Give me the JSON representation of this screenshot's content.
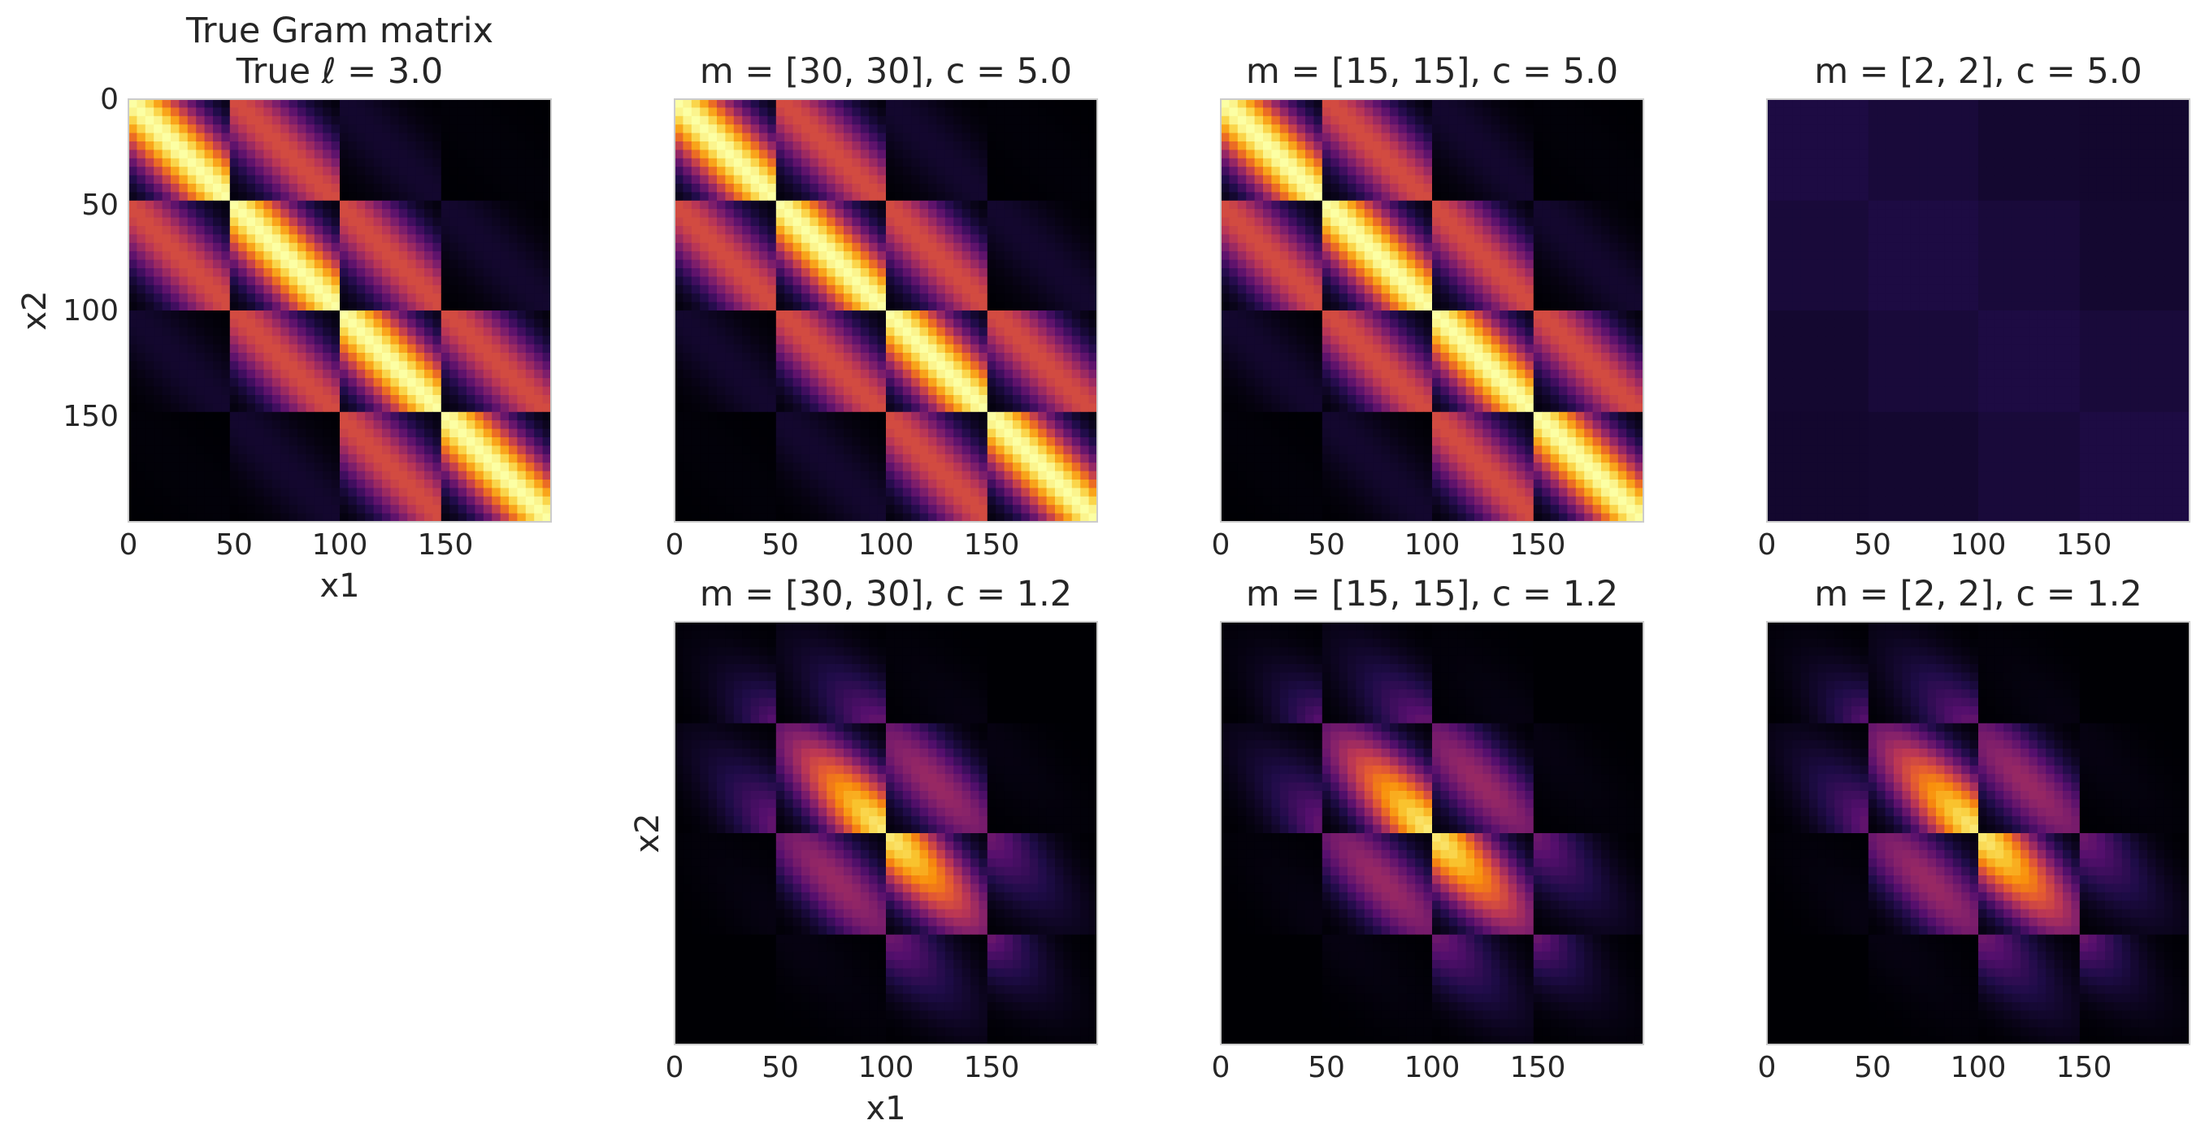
{
  "chart_data": [
    {
      "type": "heatmap",
      "panel": "true",
      "title_lines": [
        "True Gram matrix",
        "True ℓ = 3.0"
      ],
      "xlabel": "x1",
      "ylabel": "x2",
      "xticks": [
        "0",
        "50",
        "100",
        "150"
      ],
      "yticks": [
        "0",
        "50",
        "100",
        "150"
      ],
      "xlim": [
        0,
        200
      ],
      "ylim": [
        0,
        200
      ],
      "colormap": "inferno",
      "lengthscale": 3.0,
      "scale": 1.0
    },
    {
      "type": "heatmap",
      "panel": "m30c5",
      "title_lines": [
        "m = [30, 30], c = 5.0"
      ],
      "xlabel": "",
      "ylabel": "",
      "xticks": [
        "0",
        "50",
        "100",
        "150"
      ],
      "yticks": [],
      "xlim": [
        0,
        200
      ],
      "ylim": [
        0,
        200
      ],
      "colormap": "inferno",
      "m": [
        30,
        30
      ],
      "c": 5.0,
      "scale": 1.0
    },
    {
      "type": "heatmap",
      "panel": "m15c5",
      "title_lines": [
        "m = [15, 15], c = 5.0"
      ],
      "xlabel": "",
      "ylabel": "",
      "xticks": [
        "0",
        "50",
        "100",
        "150"
      ],
      "yticks": [],
      "xlim": [
        0,
        200
      ],
      "ylim": [
        0,
        200
      ],
      "colormap": "inferno",
      "m": [
        15,
        15
      ],
      "c": 5.0,
      "scale": 1.0
    },
    {
      "type": "heatmap",
      "panel": "m2c5",
      "title_lines": [
        "m = [2, 2], c = 5.0"
      ],
      "xlabel": "",
      "ylabel": "",
      "xticks": [
        "0",
        "50",
        "100",
        "150"
      ],
      "yticks": [],
      "xlim": [
        0,
        200
      ],
      "ylim": [
        0,
        200
      ],
      "colormap": "inferno",
      "m": [
        2,
        2
      ],
      "c": 5.0,
      "scale": 0.08
    },
    {
      "type": "heatmap",
      "panel": "m30c12",
      "title_lines": [
        "m = [30, 30], c = 1.2"
      ],
      "xlabel": "x1",
      "ylabel": "x2",
      "xticks": [
        "0",
        "50",
        "100",
        "150"
      ],
      "yticks": [],
      "xlim": [
        0,
        200
      ],
      "ylim": [
        0,
        200
      ],
      "colormap": "inferno",
      "m": [
        30,
        30
      ],
      "c": 1.2,
      "scale": 1.0
    },
    {
      "type": "heatmap",
      "panel": "m15c12",
      "title_lines": [
        "m = [15, 15], c = 1.2"
      ],
      "xlabel": "",
      "ylabel": "",
      "xticks": [
        "0",
        "50",
        "100",
        "150"
      ],
      "yticks": [],
      "xlim": [
        0,
        200
      ],
      "ylim": [
        0,
        200
      ],
      "colormap": "inferno",
      "m": [
        15,
        15
      ],
      "c": 1.2,
      "scale": 1.0
    },
    {
      "type": "heatmap",
      "panel": "m2c12",
      "title_lines": [
        "m = [2, 2], c = 1.2"
      ],
      "xlabel": "",
      "ylabel": "",
      "xticks": [
        "0",
        "50",
        "100",
        "150"
      ],
      "yticks": [],
      "xlim": [
        0,
        200
      ],
      "ylim": [
        0,
        200
      ],
      "colormap": "inferno",
      "m": [
        2,
        2
      ],
      "c": 1.2,
      "scale": 1.0
    }
  ]
}
